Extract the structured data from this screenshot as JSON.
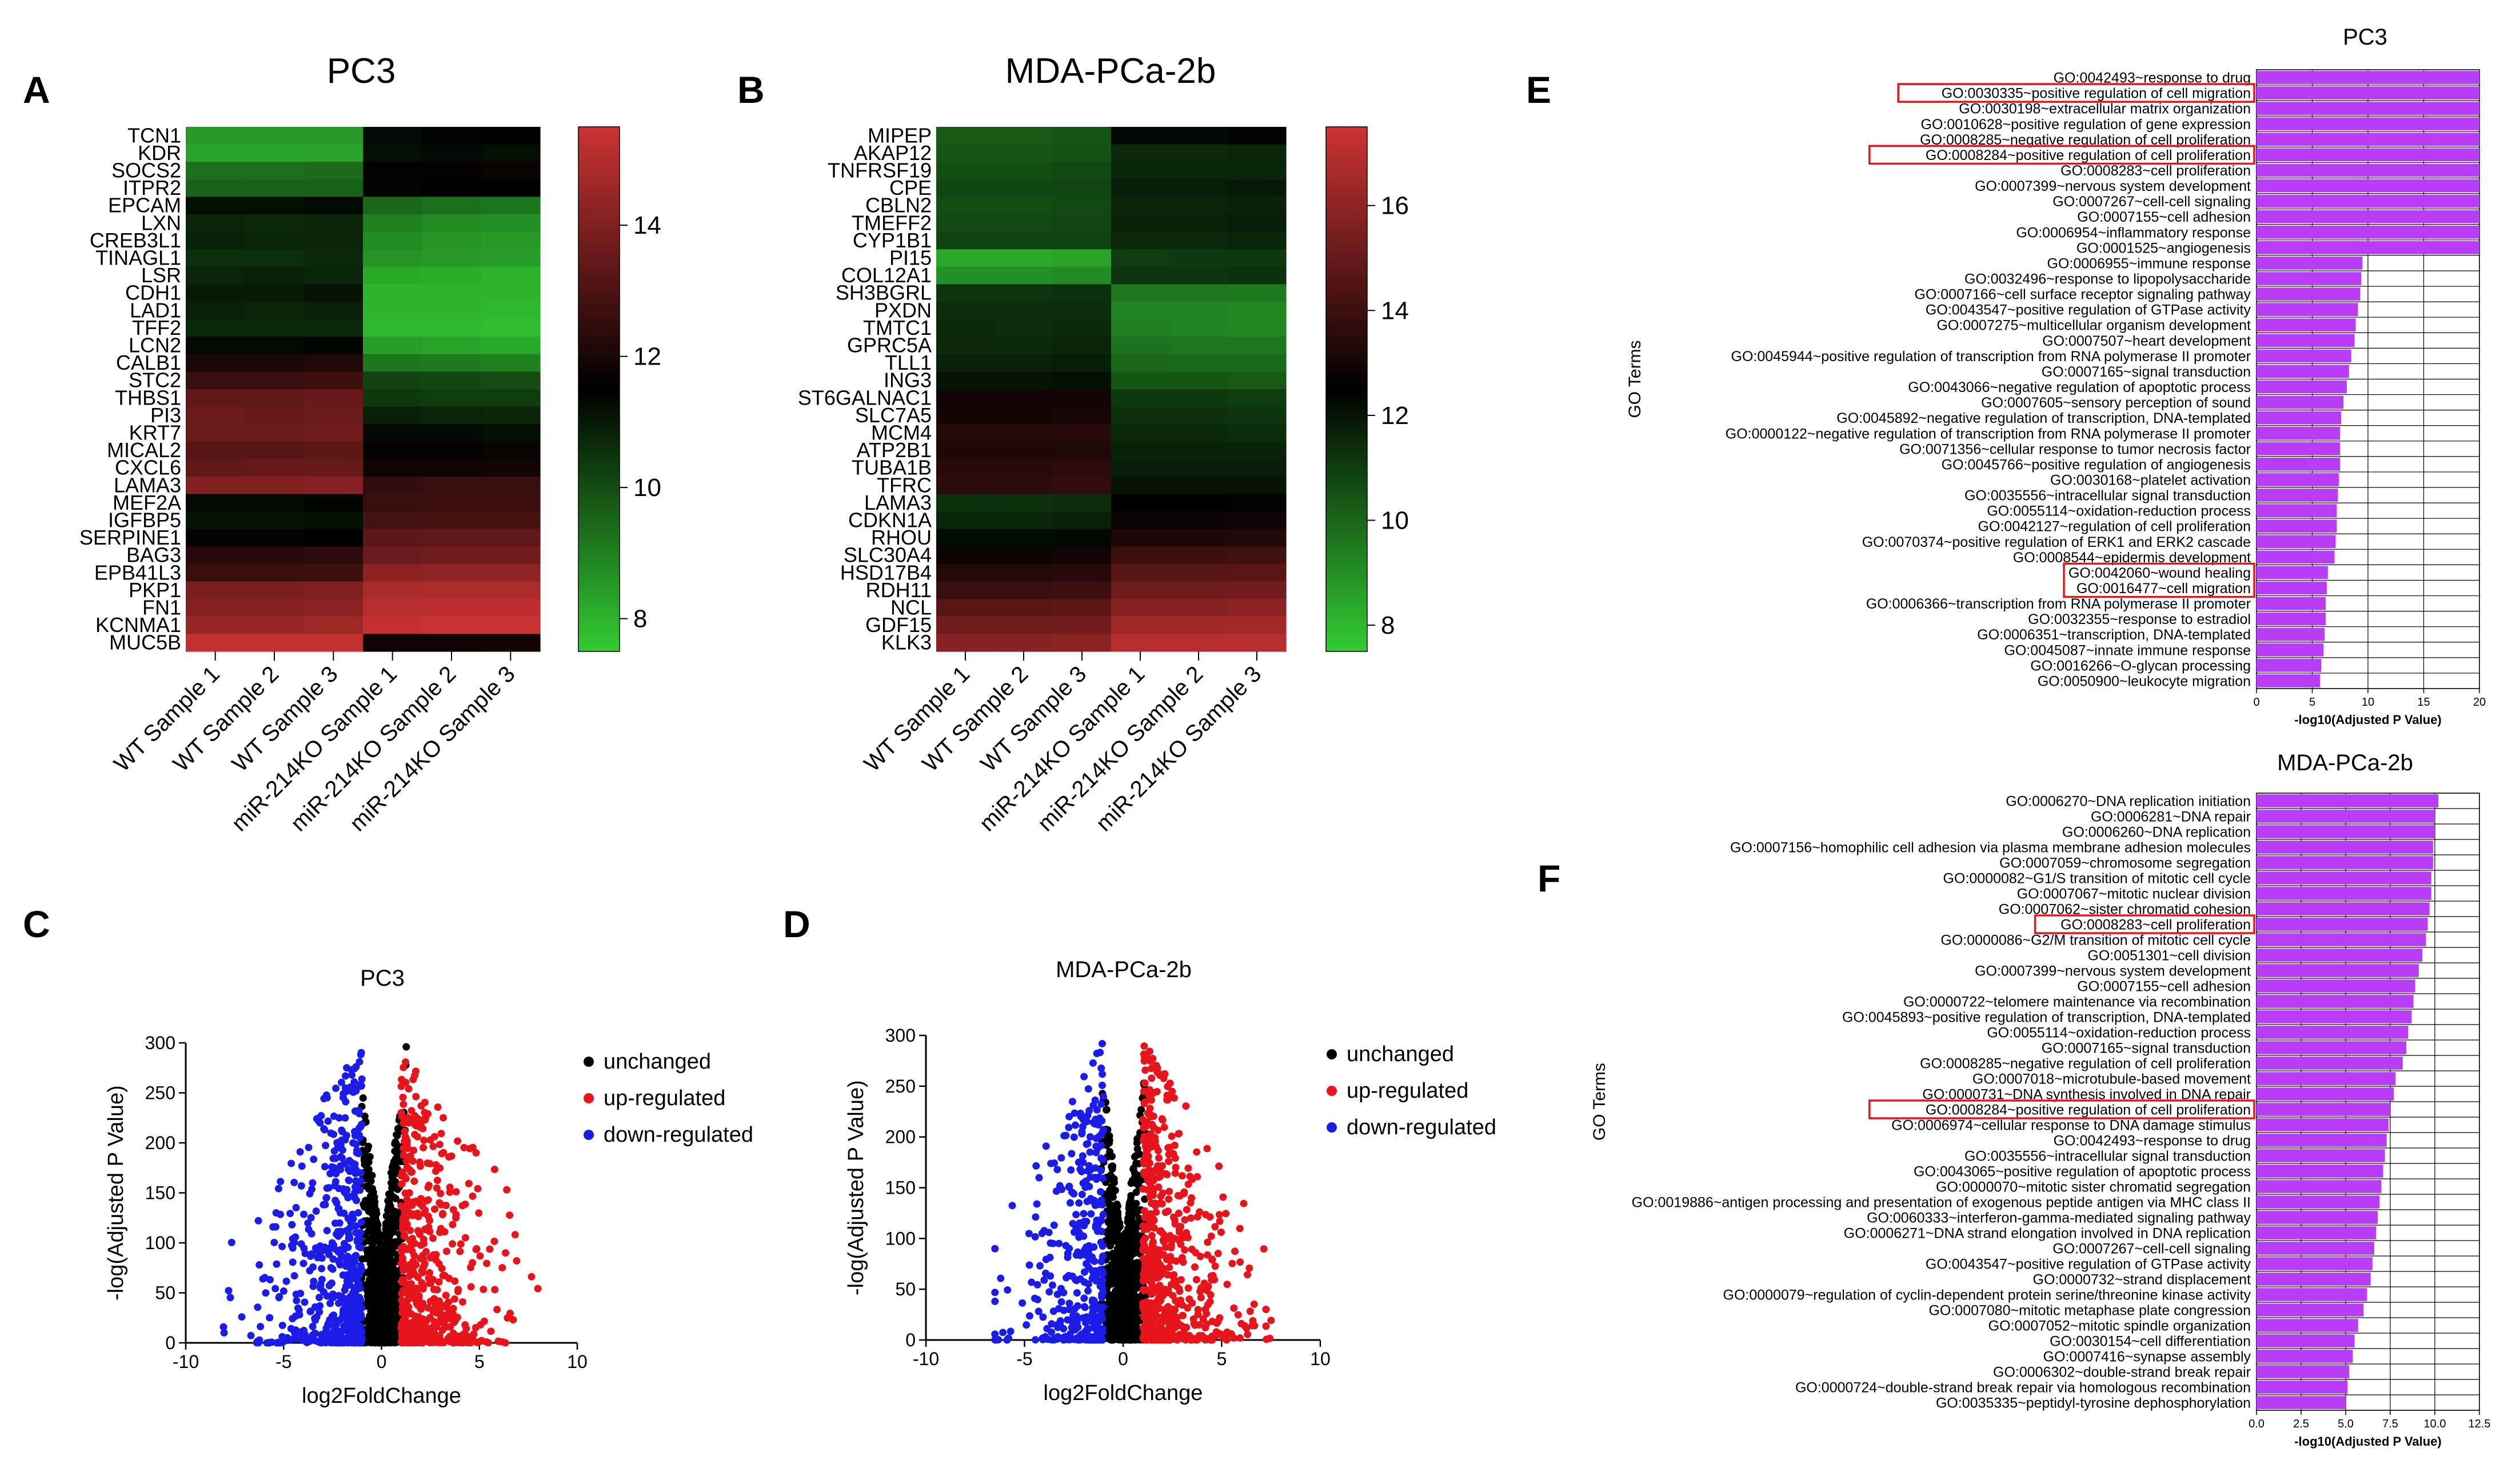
{
  "chart_data": [
    {
      "panel": "A",
      "type": "heatmap",
      "title": "PC3",
      "rows": [
        "TCN1",
        "KDR",
        "SOCS2",
        "ITPR2",
        "EPCAM",
        "LXN",
        "CREB3L1",
        "TINAGL1",
        "LSR",
        "CDH1",
        "LAD1",
        "TFF2",
        "LCN2",
        "CALB1",
        "STC2",
        "THBS1",
        "PI3",
        "KRT7",
        "MICAL2",
        "CXCL6",
        "LAMA3",
        "MEF2A",
        "IGFBP5",
        "SERPINE1",
        "BAG3",
        "EPB41L3",
        "PKP1",
        "FN1",
        "KCNMA1",
        "MUC5B"
      ],
      "columns": [
        "WT Sample 1",
        "WT Sample 2",
        "WT Sample 3",
        "miR-214KO Sample 1",
        "miR-214KO Sample 2",
        "miR-214KO Sample 3"
      ],
      "values": [
        [
          8.5,
          8.5,
          8.5,
          11.3,
          11.4,
          11.5
        ],
        [
          8.3,
          8.3,
          8.3,
          11.2,
          11.3,
          11.2
        ],
        [
          9.3,
          9.3,
          9.4,
          11.6,
          11.6,
          11.7
        ],
        [
          9.6,
          9.6,
          9.6,
          11.4,
          11.5,
          11.5
        ],
        [
          11.2,
          11.2,
          11.3,
          9.5,
          9.3,
          9.2
        ],
        [
          10.8,
          10.7,
          10.8,
          9.0,
          8.8,
          8.7
        ],
        [
          10.9,
          10.8,
          10.8,
          8.8,
          8.6,
          8.5
        ],
        [
          10.6,
          10.6,
          10.7,
          8.6,
          8.5,
          8.4
        ],
        [
          10.8,
          10.9,
          10.8,
          8.2,
          8.1,
          8.0
        ],
        [
          11.0,
          11.0,
          11.1,
          8.0,
          8.0,
          8.0
        ],
        [
          10.9,
          10.8,
          10.9,
          8.0,
          8.0,
          7.9
        ],
        [
          10.7,
          10.7,
          10.7,
          7.9,
          7.9,
          7.8
        ],
        [
          11.3,
          11.3,
          11.4,
          8.4,
          8.3,
          8.2
        ],
        [
          12.0,
          12.0,
          12.1,
          9.2,
          9.1,
          9.0
        ],
        [
          12.6,
          12.6,
          12.7,
          10.2,
          10.1,
          10.0
        ],
        [
          13.4,
          13.4,
          13.5,
          10.4,
          10.3,
          10.3
        ],
        [
          13.6,
          13.5,
          13.6,
          10.9,
          10.8,
          10.8
        ],
        [
          13.6,
          13.6,
          13.7,
          11.3,
          11.3,
          11.2
        ],
        [
          13.2,
          13.2,
          13.3,
          11.6,
          11.6,
          11.7
        ],
        [
          13.4,
          13.5,
          13.5,
          11.8,
          11.8,
          11.9
        ],
        [
          14.0,
          14.0,
          14.1,
          12.5,
          12.6,
          12.6
        ],
        [
          11.3,
          11.3,
          11.4,
          12.6,
          12.7,
          12.7
        ],
        [
          11.1,
          11.1,
          11.2,
          12.8,
          12.9,
          12.9
        ],
        [
          11.4,
          11.4,
          11.5,
          13.3,
          13.4,
          13.4
        ],
        [
          12.3,
          12.3,
          12.4,
          13.6,
          13.7,
          13.7
        ],
        [
          12.6,
          12.6,
          12.7,
          14.2,
          14.3,
          14.3
        ],
        [
          13.9,
          13.9,
          14.0,
          14.8,
          14.9,
          14.9
        ],
        [
          14.1,
          14.1,
          14.2,
          15.1,
          15.2,
          15.2
        ],
        [
          14.5,
          14.5,
          14.6,
          15.3,
          15.4,
          15.4
        ],
        [
          15.3,
          15.3,
          15.3,
          11.8,
          11.8,
          11.9
        ]
      ],
      "colorbar": {
        "min": 7.5,
        "max": 15.5,
        "ticks": [
          14,
          12,
          10,
          8
        ],
        "low_color": "#33cc33",
        "mid_color": "#000000",
        "high_color": "#cc3333"
      }
    },
    {
      "panel": "B",
      "type": "heatmap",
      "title": "MDA-PCa-2b",
      "rows": [
        "MIPEP",
        "AKAP12",
        "TNFRSF19",
        "CPE",
        "CBLN2",
        "TMEFF2",
        "CYP1B1",
        "PI15",
        "COL12A1",
        "SH3BGRL",
        "PXDN",
        "TMTC1",
        "GPRC5A",
        "TLL1",
        "ING3",
        "ST6GALNAC1",
        "SLC7A5",
        "MCM4",
        "ATP2B1",
        "TUBA1B",
        "TFRC",
        "LAMA3",
        "CDKN1A",
        "RHOU",
        "SLC30A4",
        "HSD17B4",
        "RDH11",
        "NCL",
        "GDF15",
        "KLK3"
      ],
      "columns": [
        "WT Sample 1",
        "WT Sample 2",
        "WT Sample 3",
        "miR-214KO Sample 1",
        "miR-214KO Sample 2",
        "miR-214KO Sample 3"
      ],
      "values": [
        [
          10.3,
          10.3,
          10.4,
          12.3,
          12.3,
          12.4
        ],
        [
          10.4,
          10.4,
          10.5,
          11.5,
          11.5,
          11.6
        ],
        [
          10.6,
          10.6,
          10.7,
          11.6,
          11.6,
          11.6
        ],
        [
          10.8,
          10.8,
          10.8,
          11.8,
          11.8,
          11.9
        ],
        [
          10.6,
          10.6,
          10.7,
          11.6,
          11.6,
          11.7
        ],
        [
          10.7,
          10.7,
          10.8,
          11.7,
          11.7,
          11.8
        ],
        [
          10.9,
          10.9,
          10.9,
          11.5,
          11.5,
          11.6
        ],
        [
          8.4,
          8.4,
          8.5,
          11.0,
          11.1,
          11.1
        ],
        [
          9.0,
          9.0,
          9.1,
          11.2,
          11.2,
          11.3
        ],
        [
          11.2,
          11.2,
          11.3,
          9.6,
          9.6,
          9.5
        ],
        [
          11.4,
          11.4,
          11.4,
          9.3,
          9.3,
          9.2
        ],
        [
          11.5,
          11.4,
          11.5,
          9.4,
          9.3,
          9.2
        ],
        [
          11.5,
          11.5,
          11.6,
          9.7,
          9.6,
          9.6
        ],
        [
          11.7,
          11.7,
          11.8,
          10.0,
          9.9,
          9.9
        ],
        [
          12.0,
          12.0,
          12.1,
          10.4,
          10.4,
          10.3
        ],
        [
          12.9,
          12.9,
          13.0,
          11.1,
          11.1,
          11.0
        ],
        [
          13.0,
          13.0,
          13.1,
          11.3,
          11.3,
          11.2
        ],
        [
          13.4,
          13.4,
          13.5,
          11.5,
          11.5,
          11.4
        ],
        [
          13.2,
          13.2,
          13.3,
          11.7,
          11.7,
          11.7
        ],
        [
          13.5,
          13.5,
          13.6,
          11.8,
          11.8,
          11.8
        ],
        [
          13.6,
          13.6,
          13.7,
          12.0,
          12.0,
          12.0
        ],
        [
          11.3,
          11.3,
          11.4,
          12.5,
          12.5,
          12.6
        ],
        [
          11.6,
          11.6,
          11.7,
          12.8,
          12.8,
          12.9
        ],
        [
          12.2,
          12.2,
          12.3,
          13.2,
          13.2,
          13.3
        ],
        [
          12.8,
          12.8,
          12.9,
          14.0,
          14.0,
          14.1
        ],
        [
          13.4,
          13.4,
          13.5,
          14.6,
          14.6,
          14.7
        ],
        [
          13.9,
          13.9,
          14.0,
          15.2,
          15.2,
          15.3
        ],
        [
          14.7,
          14.7,
          14.8,
          15.8,
          15.8,
          15.9
        ],
        [
          15.2,
          15.2,
          15.3,
          16.4,
          16.4,
          16.5
        ],
        [
          15.8,
          15.8,
          15.9,
          17.0,
          17.0,
          17.0
        ]
      ],
      "colorbar": {
        "min": 7.5,
        "max": 17.5,
        "ticks": [
          16,
          14,
          12,
          10,
          8
        ],
        "low_color": "#33cc33",
        "mid_color": "#000000",
        "high_color": "#cc3333"
      }
    },
    {
      "panel": "C",
      "type": "scatter",
      "title": "PC3",
      "xlabel": "log2FoldChange",
      "ylabel": "-log(Adjusted P Value)",
      "xlim": [
        -10,
        10
      ],
      "ylim": [
        0,
        300
      ],
      "xticks": [
        -10,
        -5,
        0,
        5,
        10
      ],
      "yticks": [
        0,
        50,
        100,
        150,
        200,
        250,
        300
      ],
      "legend": [
        {
          "label": "unchanged",
          "color": "#000000"
        },
        {
          "label": "up-regulated",
          "color": "#e8141c"
        },
        {
          "label": "down-regulated",
          "color": "#1c1ce8"
        }
      ],
      "series": [
        {
          "name": "unchanged",
          "color": "#000000",
          "n": 900,
          "xrange": [
            -1.2,
            1.3
          ],
          "ymax": 290,
          "seed": 11
        },
        {
          "name": "up-regulated",
          "color": "#e8141c",
          "n": 520,
          "xrange": [
            1.0,
            9.0
          ],
          "ymax": 290,
          "seed": 12
        },
        {
          "name": "down-regulated",
          "color": "#1c1ce8",
          "n": 560,
          "xrange": [
            -8.5,
            -1.0
          ],
          "ymax": 295,
          "seed": 13
        }
      ]
    },
    {
      "panel": "D",
      "type": "scatter",
      "title": "MDA-PCa-2b",
      "xlabel": "log2FoldChange",
      "ylabel": "-log(Adjusted P Value)",
      "xlim": [
        -10,
        10
      ],
      "ylim": [
        0,
        300
      ],
      "xticks": [
        -10,
        -5,
        0,
        5,
        10
      ],
      "yticks": [
        0,
        50,
        100,
        150,
        200,
        250,
        300
      ],
      "legend": [
        {
          "label": "unchanged",
          "color": "#000000"
        },
        {
          "label": "up-regulated",
          "color": "#e8141c"
        },
        {
          "label": "down-regulated",
          "color": "#1c1ce8"
        }
      ],
      "series": [
        {
          "name": "unchanged",
          "color": "#000000",
          "n": 900,
          "xrange": [
            -1.2,
            1.3
          ],
          "ymax": 290,
          "seed": 21
        },
        {
          "name": "up-regulated",
          "color": "#e8141c",
          "n": 620,
          "xrange": [
            1.0,
            7.5
          ],
          "ymax": 295,
          "seed": 22
        },
        {
          "name": "down-regulated",
          "color": "#1c1ce8",
          "n": 380,
          "xrange": [
            -6.5,
            -1.0
          ],
          "ymax": 295,
          "seed": 23
        }
      ]
    },
    {
      "panel": "E",
      "type": "bar",
      "orientation": "horizontal",
      "title": "PC3",
      "xlabel": "-log10(Adjusted P Value)",
      "ylabel": "GO Terms",
      "xlim": [
        0,
        20
      ],
      "xticks": [
        0,
        5,
        10,
        15,
        20
      ],
      "bar_color": "#b93cf6",
      "categories": [
        "GO:0042493~response to drug",
        "GO:0030335~positive regulation of cell migration",
        "GO:0030198~extracellular matrix organization",
        "GO:0010628~positive regulation of gene expression",
        "GO:0008285~negative regulation of cell proliferation",
        "GO:0008284~positive regulation of cell proliferation",
        "GO:0008283~cell proliferation",
        "GO:0007399~nervous system development",
        "GO:0007267~cell-cell signaling",
        "GO:0007155~cell adhesion",
        "GO:0006954~inflammatory response",
        "GO:0001525~angiogenesis",
        "GO:0006955~immune response",
        "GO:0032496~response to lipopolysaccharide",
        "GO:0007166~cell surface receptor signaling pathway",
        "GO:0043547~positive regulation of GTPase activity",
        "GO:0007275~multicellular organism development",
        "GO:0007507~heart development",
        "GO:0045944~positive regulation of transcription from RNA polymerase II promoter",
        "GO:0007165~signal transduction",
        "GO:0043066~negative regulation of apoptotic process",
        "GO:0007605~sensory perception of sound",
        "GO:0045892~negative regulation of transcription, DNA-templated",
        "GO:0000122~negative regulation of transcription from RNA polymerase II promoter",
        "GO:0071356~cellular response to tumor necrosis factor",
        "GO:0045766~positive regulation of angiogenesis",
        "GO:0030168~platelet activation",
        "GO:0035556~intracellular signal transduction",
        "GO:0055114~oxidation-reduction process",
        "GO:0042127~regulation of cell proliferation",
        "GO:0070374~positive regulation of ERK1 and ERK2 cascade",
        "GO:0008544~epidermis development",
        "GO:0042060~wound healing",
        "GO:0016477~cell migration",
        "GO:0006366~transcription from RNA polymerase II promoter",
        "GO:0032355~response to estradiol",
        "GO:0006351~transcription, DNA-templated",
        "GO:0045087~innate immune response",
        "GO:0016266~O-glycan processing",
        "GO:0050900~leukocyte migration"
      ],
      "values": [
        20,
        20,
        20,
        20,
        20,
        20,
        20,
        20,
        20,
        20,
        20,
        20,
        9.5,
        9.4,
        9.3,
        9.1,
        8.9,
        8.8,
        8.5,
        8.3,
        8.1,
        7.8,
        7.6,
        7.5,
        7.5,
        7.5,
        7.4,
        7.3,
        7.2,
        7.2,
        7.1,
        7.0,
        6.4,
        6.3,
        6.2,
        6.2,
        6.1,
        6.0,
        5.8,
        5.7
      ],
      "highlighted": [
        1,
        5,
        32,
        33
      ]
    },
    {
      "panel": "F",
      "type": "bar",
      "orientation": "horizontal",
      "title": "MDA-PCa-2b",
      "xlabel": "-log10(Adjusted P Value)",
      "ylabel": "GO Terms",
      "xlim": [
        0,
        12.5
      ],
      "xticks": [
        0.0,
        2.5,
        5.0,
        7.5,
        10.0,
        12.5
      ],
      "xtick_labels": [
        "0.0",
        "2.5",
        "5.0",
        "7.5",
        "10.0",
        "12.5"
      ],
      "bar_color": "#b93cf6",
      "categories": [
        "GO:0006270~DNA replication initiation",
        "GO:0006281~DNA repair",
        "GO:0006260~DNA replication",
        "GO:0007156~homophilic cell adhesion via plasma membrane adhesion molecules",
        "GO:0007059~chromosome segregation",
        "GO:0000082~G1/S transition of mitotic cell cycle",
        "GO:0007067~mitotic nuclear division",
        "GO:0007062~sister chromatid cohesion",
        "GO:0008283~cell proliferation",
        "GO:0000086~G2/M transition of mitotic cell cycle",
        "GO:0051301~cell division",
        "GO:0007399~nervous system development",
        "GO:0007155~cell adhesion",
        "GO:0000722~telomere maintenance via recombination",
        "GO:0045893~positive regulation of transcription, DNA-templated",
        "GO:0055114~oxidation-reduction process",
        "GO:0007165~signal transduction",
        "GO:0008285~negative regulation of cell proliferation",
        "GO:0007018~microtubule-based movement",
        "GO:0000731~DNA synthesis involved in DNA repair",
        "GO:0008284~positive regulation of cell proliferation",
        "GO:0006974~cellular response to DNA damage stimulus",
        "GO:0042493~response to drug",
        "GO:0035556~intracellular signal transduction",
        "GO:0043065~positive regulation of apoptotic process",
        "GO:0000070~mitotic sister chromatid segregation",
        "GO:0019886~antigen processing and presentation of exogenous peptide antigen via MHC class II",
        "GO:0060333~interferon-gamma-mediated signaling pathway",
        "GO:0006271~DNA strand elongation involved in DNA replication",
        "GO:0007267~cell-cell signaling",
        "GO:0043547~positive regulation of GTPase activity",
        "GO:0000732~strand displacement",
        "GO:0000079~regulation of cyclin-dependent protein serine/threonine kinase activity",
        "GO:0007080~mitotic metaphase plate congression",
        "GO:0007052~mitotic spindle organization",
        "GO:0030154~cell differentiation",
        "GO:0007416~synapse assembly",
        "GO:0006302~double-strand break repair",
        "GO:0000724~double-strand break repair via homologous recombination",
        "GO:0035335~peptidyl-tyrosine dephosphorylation"
      ],
      "values": [
        10.2,
        10.0,
        10.0,
        9.9,
        9.9,
        9.8,
        9.8,
        9.7,
        9.6,
        9.5,
        9.3,
        9.1,
        8.9,
        8.8,
        8.7,
        8.5,
        8.4,
        8.2,
        7.8,
        7.7,
        7.5,
        7.4,
        7.3,
        7.2,
        7.1,
        7.0,
        6.9,
        6.8,
        6.7,
        6.6,
        6.5,
        6.4,
        6.2,
        6.0,
        5.7,
        5.5,
        5.4,
        5.2,
        5.1,
        5.0
      ],
      "highlighted": [
        8,
        20
      ]
    }
  ],
  "colors": {
    "highlight_box": "#e8141c",
    "bar": "#b93cf6",
    "grid": "#000000"
  }
}
